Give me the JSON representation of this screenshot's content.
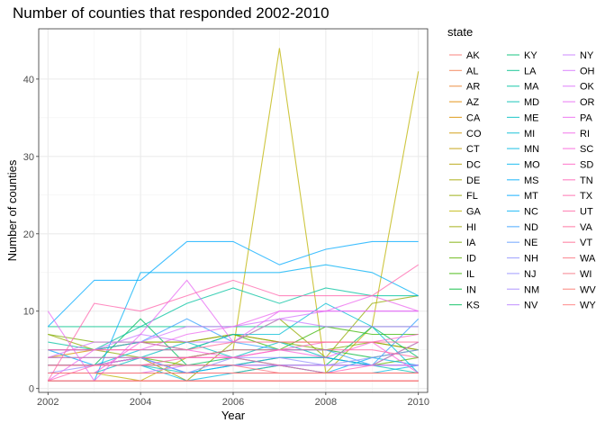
{
  "chart_data": {
    "type": "line",
    "title": "Number of counties that responded 2002-2010",
    "xlabel": "Year",
    "ylabel": "Number of counties",
    "xlim": [
      2001.8,
      2010.2
    ],
    "ylim": [
      -0.5,
      46.5
    ],
    "xticks": [
      2002,
      2004,
      2006,
      2008,
      2010
    ],
    "yticks": [
      0,
      10,
      20,
      30,
      40
    ],
    "grid": true,
    "legend": {
      "title": "state",
      "position": "right",
      "columns": 3
    },
    "x": [
      2002,
      2003,
      2004,
      2005,
      2006,
      2007,
      2008,
      2009,
      2010
    ],
    "series": [
      {
        "name": "AK",
        "color": "#F8766D",
        "values": [
          1,
          1,
          1,
          1,
          1,
          1,
          1,
          1,
          1
        ]
      },
      {
        "name": "AL",
        "color": "#F27D52",
        "values": [
          2,
          2,
          2,
          2,
          2,
          2,
          2,
          2,
          2
        ]
      },
      {
        "name": "AR",
        "color": "#EA8331",
        "values": [
          1,
          1,
          1,
          1,
          1,
          1,
          1,
          1,
          1
        ]
      },
      {
        "name": "AZ",
        "color": "#E18A00",
        "values": [
          3,
          3,
          3,
          3,
          3,
          3,
          3,
          3,
          3
        ]
      },
      {
        "name": "CA",
        "color": "#D89000",
        "values": [
          4,
          5,
          6,
          6,
          7,
          6,
          6,
          6,
          5
        ]
      },
      {
        "name": "CO",
        "color": "#CD9600",
        "values": [
          3,
          3,
          3,
          3,
          3,
          3,
          3,
          3,
          3
        ]
      },
      {
        "name": "CT",
        "color": "#C09B00",
        "values": [
          1,
          1,
          1,
          1,
          1,
          1,
          1,
          1,
          1
        ]
      },
      {
        "name": "DC",
        "color": "#B3A000",
        "values": [
          1,
          1,
          1,
          1,
          1,
          1,
          1,
          1,
          1
        ]
      },
      {
        "name": "DE",
        "color": "#A3A500",
        "values": [
          2,
          2,
          2,
          2,
          2,
          3,
          2,
          2,
          2
        ]
      },
      {
        "name": "FL",
        "color": "#93AA00",
        "values": [
          7,
          5,
          4,
          1,
          6,
          9,
          4,
          11,
          12
        ]
      },
      {
        "name": "GA",
        "color": "#BDB300",
        "values": [
          2,
          2,
          1,
          4,
          5,
          44,
          2,
          8,
          41
        ]
      },
      {
        "name": "HI",
        "color": "#9CA700",
        "values": [
          2,
          2,
          2,
          2,
          2,
          2,
          2,
          2,
          2
        ]
      },
      {
        "name": "IA",
        "color": "#7CAE00",
        "values": [
          7,
          6,
          6,
          6,
          7,
          6,
          5,
          6,
          5
        ]
      },
      {
        "name": "ID",
        "color": "#5EB300",
        "values": [
          3,
          3,
          4,
          3,
          3,
          4,
          4,
          3,
          4
        ]
      },
      {
        "name": "IL",
        "color": "#39B600",
        "values": [
          5,
          5,
          6,
          5,
          7,
          5,
          8,
          7,
          7
        ]
      },
      {
        "name": "IN",
        "color": "#00BA38",
        "values": [
          3,
          3,
          4,
          4,
          5,
          5,
          5,
          4,
          5
        ]
      },
      {
        "name": "KS",
        "color": "#00BD5C",
        "values": [
          3,
          3,
          9,
          3,
          4,
          3,
          3,
          8,
          4
        ]
      },
      {
        "name": "KY",
        "color": "#00BF74",
        "values": [
          2,
          2,
          2,
          2,
          2,
          2,
          2,
          2,
          2
        ]
      },
      {
        "name": "LA",
        "color": "#00C08B",
        "values": [
          8,
          8,
          8,
          8,
          8,
          8,
          8,
          8,
          8
        ]
      },
      {
        "name": "MA",
        "color": "#00C19F",
        "values": [
          6,
          5,
          8,
          11,
          13,
          11,
          13,
          12,
          12
        ]
      },
      {
        "name": "MD",
        "color": "#00BFB1",
        "values": [
          3,
          3,
          3,
          2,
          3,
          3,
          3,
          3,
          2
        ]
      },
      {
        "name": "ME",
        "color": "#00BDC2",
        "values": [
          2,
          2,
          4,
          6,
          4,
          6,
          4,
          3,
          6
        ]
      },
      {
        "name": "MI",
        "color": "#00BCD4",
        "values": [
          3,
          3,
          5,
          5,
          7,
          7,
          11,
          8,
          2
        ]
      },
      {
        "name": "MN",
        "color": "#00B9E3",
        "values": [
          3,
          3,
          3,
          1,
          2,
          3,
          2,
          2,
          3
        ]
      },
      {
        "name": "MO",
        "color": "#00B4EF",
        "values": [
          4,
          4,
          4,
          2,
          2,
          2,
          2,
          4,
          3
        ]
      },
      {
        "name": "MS",
        "color": "#00ADFA",
        "values": [
          5,
          3,
          4,
          2,
          3,
          4,
          4,
          3,
          3
        ]
      },
      {
        "name": "MT",
        "color": "#00A9FF",
        "values": [
          8,
          14,
          14,
          19,
          19,
          16,
          18,
          19,
          19
        ]
      },
      {
        "name": "NC",
        "color": "#00B0F6",
        "values": [
          1,
          1,
          15,
          15,
          15,
          15,
          16,
          15,
          12
        ]
      },
      {
        "name": "ND",
        "color": "#35A2FF",
        "values": [
          5,
          5,
          6,
          9,
          6,
          5,
          5,
          3,
          9
        ]
      },
      {
        "name": "NE",
        "color": "#619CFF",
        "values": [
          3,
          3,
          3,
          3,
          3,
          3,
          3,
          3,
          3
        ]
      },
      {
        "name": "NH",
        "color": "#8E92FF",
        "values": [
          3,
          3,
          3,
          3,
          3,
          3,
          3,
          3,
          3
        ]
      },
      {
        "name": "NJ",
        "color": "#9590FF",
        "values": [
          2,
          3,
          4,
          2,
          4,
          4,
          3,
          4,
          5
        ]
      },
      {
        "name": "NM",
        "color": "#A58AFF",
        "values": [
          2,
          2,
          2,
          2,
          2,
          2,
          2,
          2,
          2
        ]
      },
      {
        "name": "NV",
        "color": "#B983FF",
        "values": [
          2,
          2,
          2,
          2,
          2,
          2,
          2,
          2,
          2
        ]
      },
      {
        "name": "NY",
        "color": "#C77CFF",
        "values": [
          5,
          5,
          7,
          6,
          6,
          9,
          8,
          8,
          8
        ]
      },
      {
        "name": "OH",
        "color": "#D575FE",
        "values": [
          4,
          6,
          6,
          8,
          8,
          9,
          10,
          10,
          10
        ]
      },
      {
        "name": "OK",
        "color": "#DB72FB",
        "values": [
          2,
          2,
          2,
          3,
          3,
          3,
          3,
          3,
          3
        ]
      },
      {
        "name": "OR",
        "color": "#E76BF3",
        "values": [
          10,
          1,
          7,
          14,
          6,
          10,
          10,
          10,
          10
        ]
      },
      {
        "name": "PA",
        "color": "#EC69EF",
        "values": [
          1,
          5,
          5,
          7,
          8,
          10,
          10,
          12,
          10
        ]
      },
      {
        "name": "RI",
        "color": "#F166E8",
        "values": [
          1,
          1,
          1,
          1,
          1,
          1,
          1,
          1,
          1
        ]
      },
      {
        "name": "SC",
        "color": "#FA62DB",
        "values": [
          2,
          2,
          6,
          5,
          4,
          5,
          4,
          6,
          2
        ]
      },
      {
        "name": "SD",
        "color": "#FF61C3",
        "values": [
          3,
          3,
          4,
          4,
          4,
          5,
          6,
          6,
          7
        ]
      },
      {
        "name": "TN",
        "color": "#FF63B6",
        "values": [
          1,
          3,
          3,
          4,
          4,
          3,
          2,
          3,
          6
        ]
      },
      {
        "name": "TX",
        "color": "#FF65AC",
        "values": [
          1,
          11,
          10,
          12,
          14,
          12,
          12,
          12,
          16
        ]
      },
      {
        "name": "UT",
        "color": "#FF67A4",
        "values": [
          4,
          4,
          4,
          4,
          5,
          5,
          5,
          5,
          4
        ]
      },
      {
        "name": "VA",
        "color": "#FF6A98",
        "values": [
          5,
          5,
          5,
          5,
          6,
          6,
          6,
          6,
          6
        ]
      },
      {
        "name": "VT",
        "color": "#FF6C91",
        "values": [
          1,
          1,
          1,
          1,
          1,
          1,
          1,
          1,
          1
        ]
      },
      {
        "name": "WA",
        "color": "#FB727E",
        "values": [
          3,
          3,
          3,
          3,
          3,
          2,
          2,
          2,
          2
        ]
      },
      {
        "name": "WI",
        "color": "#F47683",
        "values": [
          2,
          2,
          2,
          2,
          2,
          2,
          2,
          2,
          2
        ]
      },
      {
        "name": "WV",
        "color": "#F8766D",
        "values": [
          2,
          2,
          2,
          2,
          2,
          2,
          2,
          2,
          2
        ]
      },
      {
        "name": "WY",
        "color": "#FF7B7B",
        "values": [
          1,
          1,
          1,
          1,
          1,
          1,
          1,
          1,
          1
        ]
      }
    ]
  }
}
